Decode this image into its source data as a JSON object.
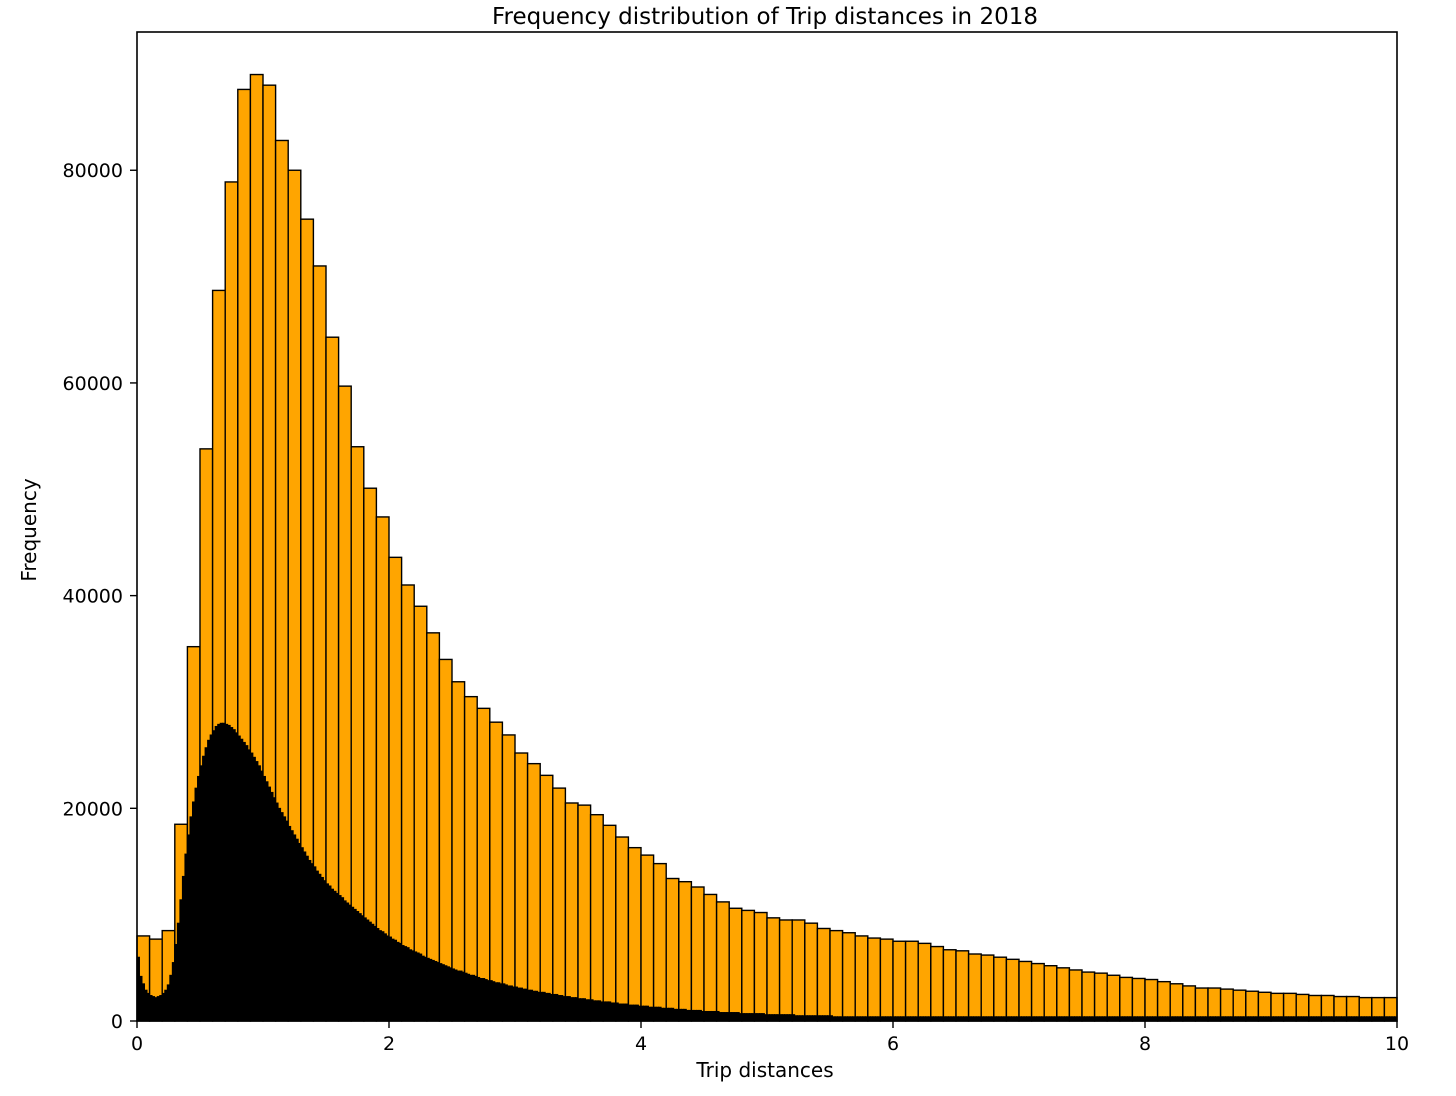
{
  "chart_data": {
    "type": "bar",
    "title": "Frequency distribution of Trip distances in 2018",
    "xlabel": "Trip distances",
    "ylabel": "Frequency",
    "xlim": [
      0,
      10
    ],
    "ylim": [
      0,
      93000
    ],
    "grid": false,
    "x_ticks": [
      0,
      2,
      4,
      6,
      8,
      10
    ],
    "y_ticks": [
      0,
      20000,
      40000,
      60000,
      80000
    ],
    "x_tick_labels": [
      "0",
      "2",
      "4",
      "6",
      "8",
      "10"
    ],
    "y_tick_labels": [
      "0",
      "20000",
      "40000",
      "60000",
      "80000"
    ],
    "series": [
      {
        "color": "#FFA500",
        "bin_start": 0,
        "bin_width": 0.1,
        "values": [
          8000,
          7700,
          8500,
          18500,
          35200,
          53800,
          68700,
          78900,
          87600,
          89000,
          88000,
          82800,
          80000,
          75400,
          71000,
          64300,
          59700,
          54000,
          50100,
          47400,
          43600,
          41000,
          39000,
          36500,
          34000,
          31900,
          30500,
          29400,
          28100,
          26900,
          25200,
          24200,
          23100,
          21900,
          20500,
          20300,
          19400,
          18400,
          17300,
          16300,
          15600,
          14800,
          13400,
          13100,
          12600,
          11900,
          11200,
          10600,
          10400,
          10200,
          9700,
          9500,
          9500,
          9200,
          8700,
          8500,
          8300,
          8000,
          7800,
          7700,
          7500,
          7500,
          7300,
          7000,
          6700,
          6600,
          6300,
          6200,
          6000,
          5800,
          5600,
          5400,
          5200,
          5000,
          4800,
          4600,
          4500,
          4300,
          4100,
          4000,
          3900,
          3700,
          3500,
          3300,
          3100,
          3100,
          3000,
          2900,
          2800,
          2700,
          2600,
          2600,
          2500,
          2400,
          2400,
          2300,
          2300,
          2200,
          2200,
          2200
        ]
      },
      {
        "color": "#000000",
        "bin_start": 0,
        "bin_width": 0.02,
        "values": [
          6000,
          4200,
          3500,
          2900,
          2600,
          2400,
          2300,
          2200,
          2300,
          2400,
          2600,
          2900,
          3400,
          4300,
          5500,
          7200,
          9200,
          11400,
          13600,
          15700,
          17500,
          19200,
          20600,
          21900,
          23000,
          24000,
          24900,
          25700,
          26400,
          26900,
          27300,
          27700,
          27900,
          28000,
          28000,
          27900,
          27800,
          27600,
          27400,
          27100,
          26800,
          26500,
          26200,
          25900,
          25500,
          25200,
          24800,
          24400,
          24000,
          23500,
          23000,
          22500,
          22000,
          21500,
          21000,
          20500,
          20000,
          19600,
          19200,
          18800,
          18300,
          17900,
          17500,
          17100,
          16700,
          16300,
          15900,
          15500,
          15100,
          14800,
          14500,
          14100,
          13800,
          13500,
          13200,
          12900,
          12700,
          12400,
          12200,
          12000,
          11800,
          11600,
          11300,
          11100,
          10900,
          10700,
          10500,
          10300,
          10100,
          9900,
          9700,
          9500,
          9300,
          9100,
          8900,
          8700,
          8500,
          8400,
          8200,
          8000,
          7900,
          7700,
          7600,
          7400,
          7300,
          7100,
          7000,
          6900,
          6700,
          6600,
          6500,
          6400,
          6300,
          6100,
          6000,
          5900,
          5800,
          5700,
          5600,
          5500,
          5400,
          5300,
          5200,
          5100,
          5000,
          4900,
          4800,
          4700,
          4700,
          4600,
          4500,
          4400,
          4300,
          4300,
          4200,
          4100,
          4000,
          4000,
          3900,
          3800,
          3800,
          3700,
          3600,
          3600,
          3500,
          3500,
          3400,
          3300,
          3300,
          3200,
          3200,
          3100,
          3100,
          3000,
          3000,
          2900,
          2900,
          2800,
          2800,
          2700,
          2700,
          2700,
          2600,
          2600,
          2500,
          2500,
          2500,
          2400,
          2400,
          2300,
          2300,
          2300,
          2200,
          2200,
          2200,
          2100,
          2100,
          2100,
          2000,
          2000,
          2000,
          1900,
          1900,
          1900,
          1800,
          1800,
          1800,
          1800,
          1700,
          1700,
          1700,
          1600,
          1600,
          1600,
          1600,
          1500,
          1500,
          1500,
          1500,
          1400,
          1400,
          1400,
          1400,
          1300,
          1300,
          1300,
          1300,
          1300,
          1200,
          1200,
          1200,
          1200,
          1200,
          1100,
          1100,
          1100,
          1100,
          1100,
          1000,
          1000,
          1000,
          1000,
          1000,
          1000,
          900,
          900,
          900,
          900,
          900,
          900,
          900,
          800,
          800,
          800,
          800,
          800,
          800,
          800,
          800,
          700,
          700,
          700,
          700,
          700,
          700,
          700,
          700,
          700,
          700,
          600,
          600,
          600,
          600,
          600,
          600,
          600,
          600,
          600,
          600,
          600,
          600,
          500,
          500,
          500,
          500,
          500,
          500,
          500,
          500,
          500,
          500,
          500,
          500,
          500,
          500,
          500,
          400,
          400,
          400,
          400,
          400,
          400,
          400,
          400,
          400,
          400,
          400,
          400,
          400,
          400,
          400,
          400,
          400,
          400,
          400,
          400,
          400,
          400,
          400,
          400,
          400,
          400,
          400,
          400,
          400,
          400,
          400,
          400,
          400,
          400,
          400,
          400,
          400,
          400,
          400,
          400,
          400,
          400,
          400,
          400,
          400,
          400,
          400,
          400,
          400,
          400,
          400,
          400,
          400,
          400,
          400,
          400,
          400,
          400,
          400,
          400,
          400,
          400,
          400,
          400,
          400,
          400,
          400,
          400,
          400,
          400,
          400,
          400,
          400,
          400,
          400,
          400,
          400,
          400,
          400,
          400,
          400,
          400,
          400,
          400,
          400,
          400,
          400,
          400,
          400,
          400,
          400,
          400,
          400,
          400,
          400,
          400,
          400,
          400,
          400,
          400,
          400,
          400,
          400,
          400,
          400,
          400,
          400,
          400,
          400,
          400,
          400,
          400,
          400,
          400,
          400,
          400,
          400,
          400,
          400,
          400,
          400,
          400,
          400,
          400,
          400,
          400,
          400,
          400,
          400,
          400,
          400,
          400,
          400,
          400,
          400,
          400,
          400,
          400,
          400,
          400,
          400,
          400,
          400,
          400,
          400,
          400,
          400,
          400,
          400,
          400,
          400,
          400,
          400,
          400,
          400,
          400,
          400,
          400,
          400,
          400,
          400,
          400,
          400,
          400,
          400,
          400,
          400,
          400,
          400,
          400,
          400,
          400,
          400,
          400,
          400,
          400,
          400,
          400,
          400,
          400,
          400,
          400,
          400,
          400,
          400,
          400,
          400,
          400,
          400,
          400,
          400,
          400,
          400,
          400,
          400,
          400,
          400,
          400,
          400,
          400,
          400,
          400,
          400,
          400,
          400,
          400,
          400,
          400,
          400,
          400,
          400,
          400,
          400,
          400,
          400,
          400,
          400,
          400,
          400,
          400,
          400,
          400,
          400,
          400,
          400,
          400,
          400,
          400,
          400,
          400,
          400,
          400,
          400,
          400,
          400,
          400
        ]
      }
    ]
  }
}
